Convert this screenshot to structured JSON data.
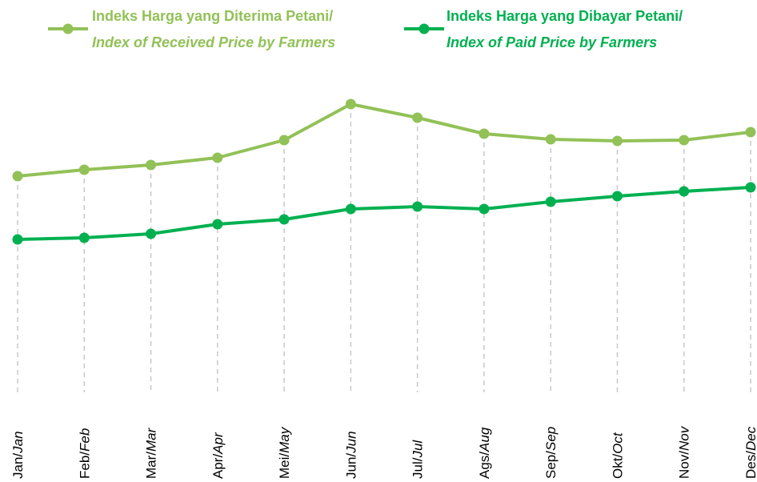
{
  "chart_data": {
    "type": "line",
    "categories": [
      "Jan/Jan",
      "Feb/Feb",
      "Mar/Mar",
      "Apr/Apr",
      "Mei/May",
      "Jun/Jun",
      "Jul/Jul",
      "Ags/Aug",
      "Sep/Sep",
      "Okt/Oct",
      "Nov/Nov",
      "Des/Dec"
    ],
    "series": [
      {
        "name": "Indeks Harga yang Diterima Petani/Index of Received Price by Farmers",
        "color": "#92c157",
        "values": [
          270,
          278,
          284,
          293,
          315,
          360,
          343,
          323,
          316,
          314,
          315,
          325
        ]
      },
      {
        "name": "Indeks Harga yang Dibayar Petani/Index of Paid Price by Farmers",
        "color": "#00b050",
        "values": [
          191,
          193,
          198,
          210,
          216,
          229,
          232,
          229,
          238,
          245,
          251,
          256
        ]
      }
    ],
    "ylim": [
      0,
      390
    ]
  }
}
